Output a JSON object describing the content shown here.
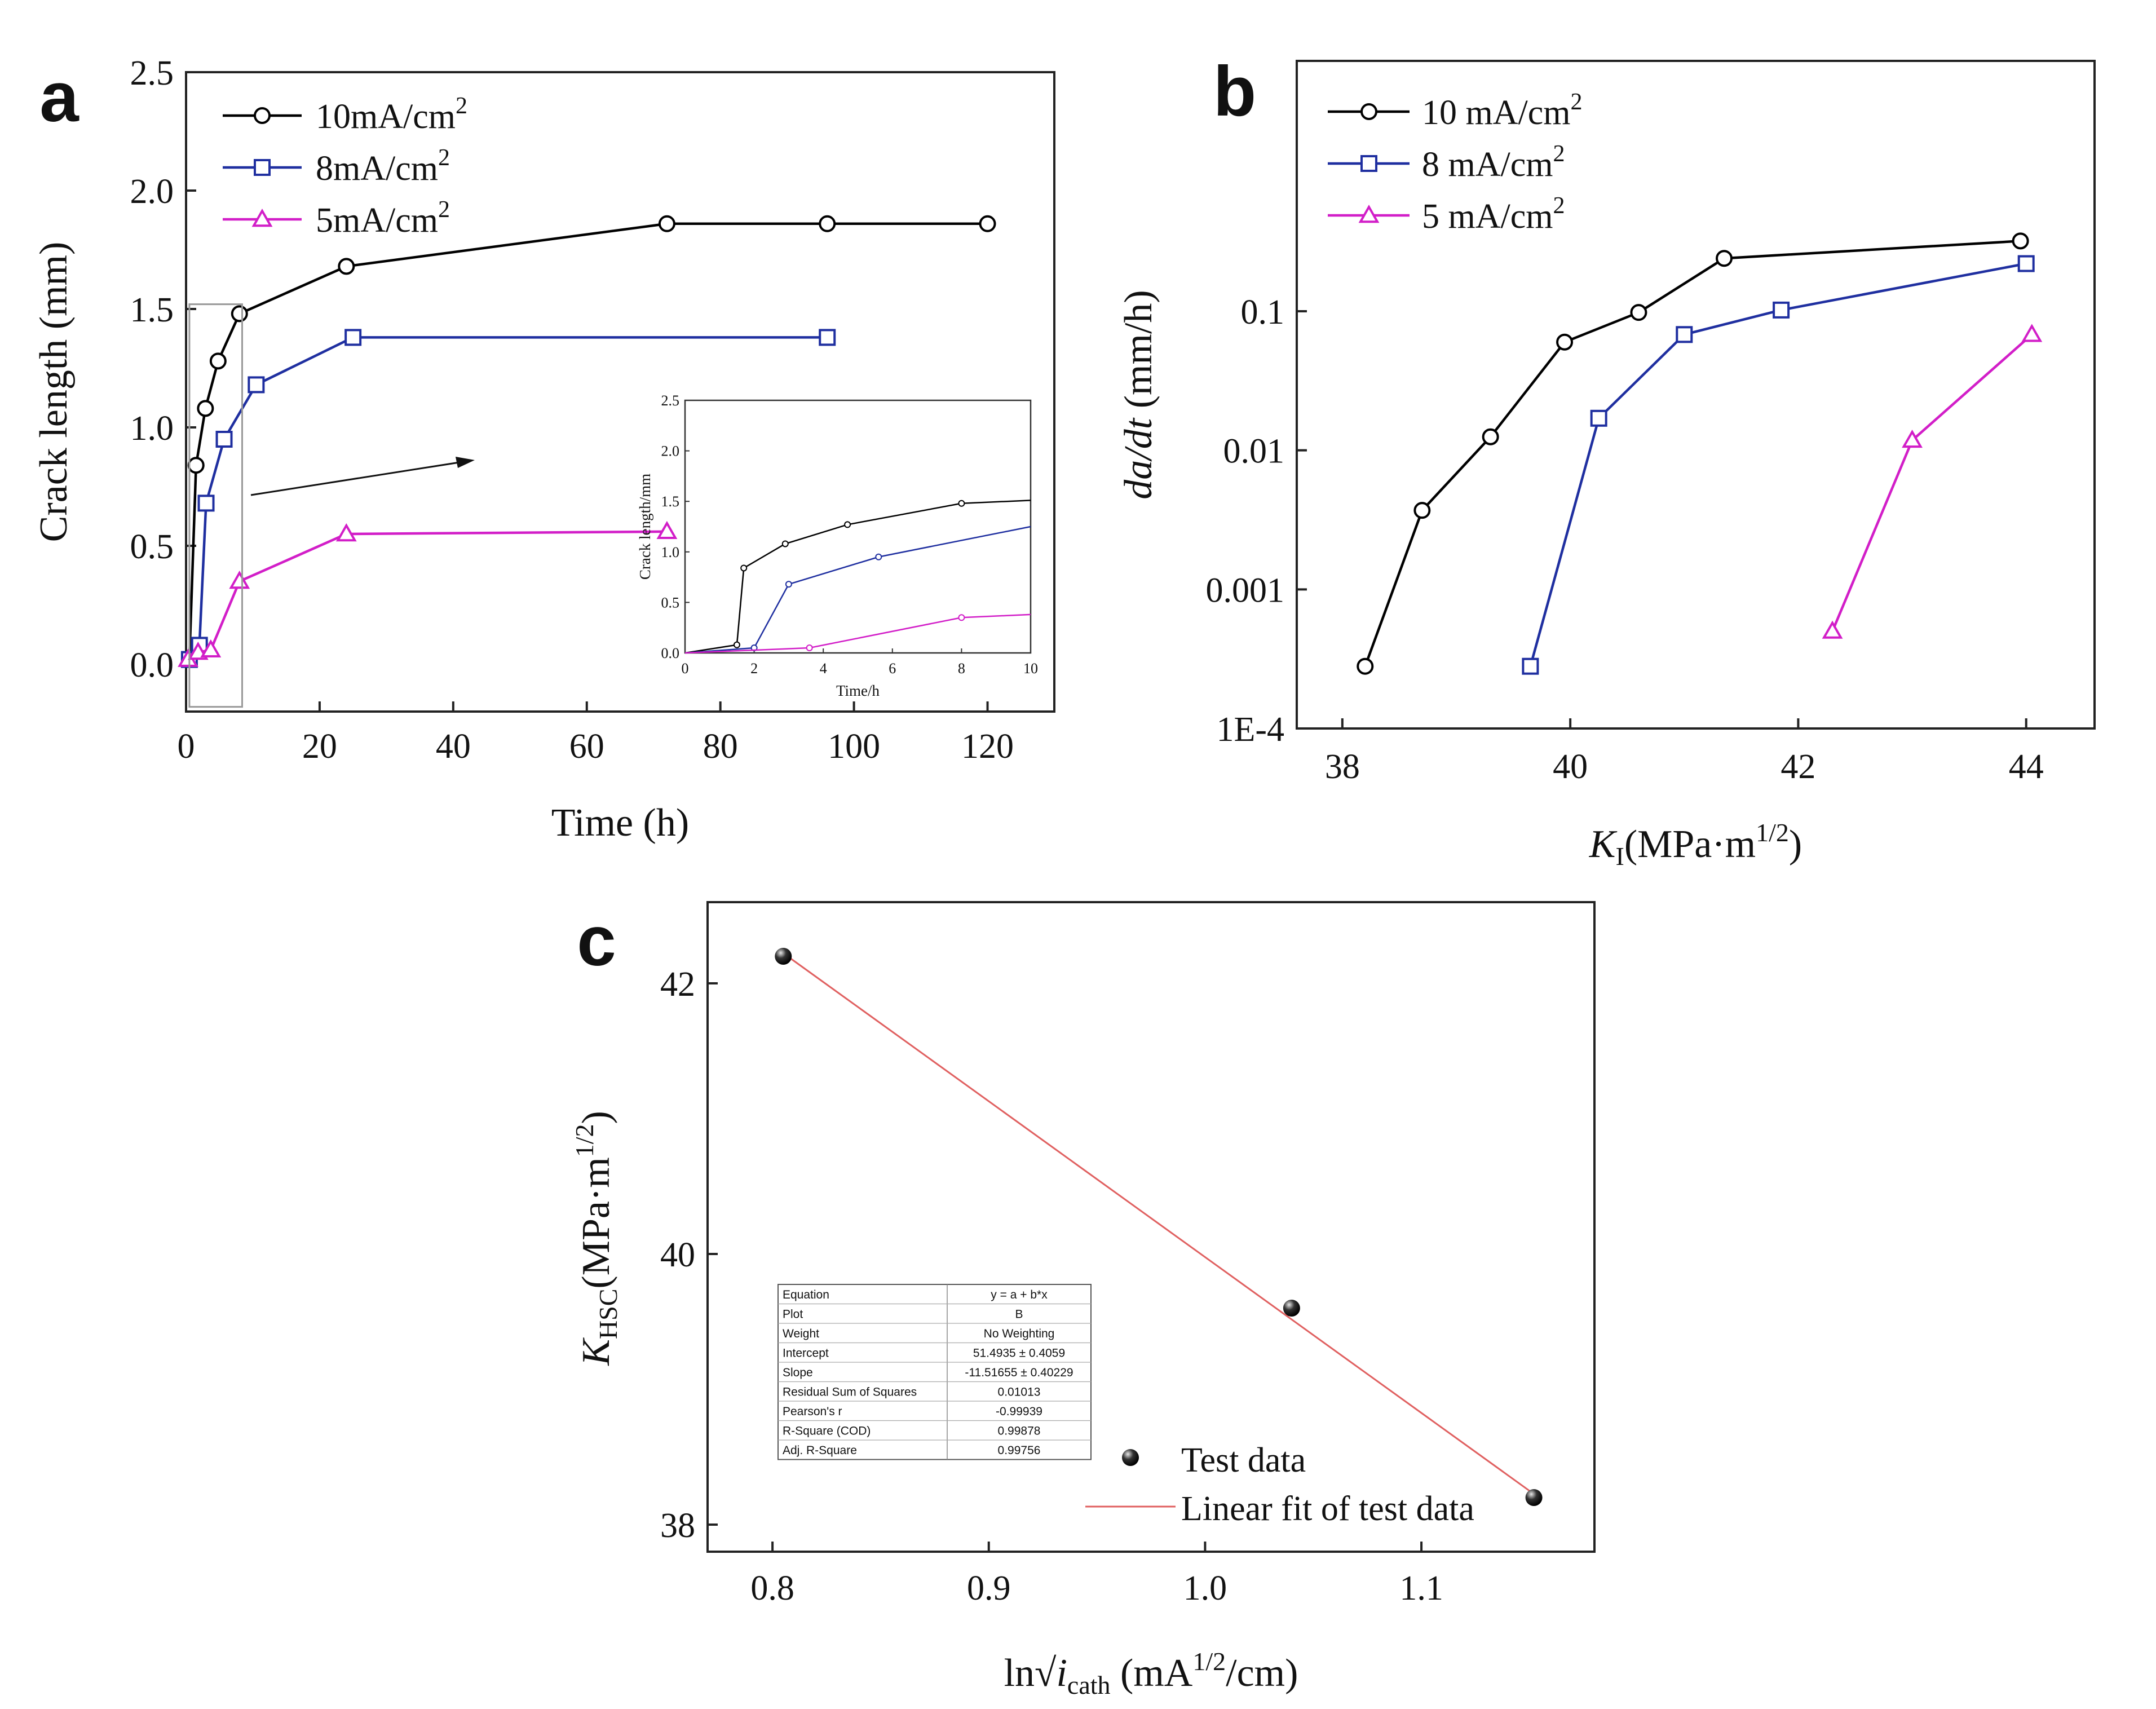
{
  "chart_data": [
    {
      "panel": "a",
      "type": "line",
      "xlabel": "Time (h)",
      "ylabel": "Crack length (mm)",
      "xlim": [
        0,
        130
      ],
      "ylim": [
        -0.2,
        2.5
      ],
      "xticks": [
        0,
        20,
        40,
        60,
        80,
        100,
        120
      ],
      "yticks": [
        0.0,
        0.5,
        1.0,
        1.5,
        2.0,
        2.5
      ],
      "legend": "top-left",
      "series": [
        {
          "name": "10mA/cm",
          "sup": "2",
          "color": "#000000",
          "marker": "circle",
          "x": [
            0.5,
            1.5,
            2.9,
            4.8,
            8,
            24,
            72,
            96,
            120
          ],
          "y": [
            0.02,
            0.84,
            1.08,
            1.28,
            1.48,
            1.68,
            1.86,
            1.86,
            1.86
          ]
        },
        {
          "name": "8mA/cm",
          "sup": "2",
          "color": "#1f2fa0",
          "marker": "square",
          "x": [
            0.5,
            2,
            3,
            5.7,
            10.5,
            25,
            96
          ],
          "y": [
            0.02,
            0.08,
            0.68,
            0.95,
            1.18,
            1.38,
            1.38
          ]
        },
        {
          "name": "5mA/cm",
          "sup": "2",
          "color": "#d21ec8",
          "marker": "triangle",
          "x": [
            0.3,
            1.8,
            3.7,
            8,
            24,
            72
          ],
          "y": [
            0.02,
            0.05,
            0.06,
            0.35,
            0.55,
            0.56
          ]
        }
      ],
      "inset": {
        "xlabel": "Time/h",
        "ylabel": "Crack length/mm",
        "xlim": [
          0,
          10
        ],
        "ylim": [
          0,
          2.5
        ],
        "xticks": [
          0,
          2,
          4,
          6,
          8,
          10
        ],
        "yticks": [
          0.0,
          0.5,
          1.0,
          1.5,
          2.0,
          2.5
        ],
        "series": [
          {
            "name": "10mA/cm2",
            "color": "#000000",
            "x": [
              0,
              1.5,
              1.7,
              2.9,
              4.7,
              8,
              10
            ],
            "y": [
              0,
              0.08,
              0.84,
              1.08,
              1.27,
              1.48,
              1.51
            ]
          },
          {
            "name": "8mA/cm2",
            "color": "#1f2fa0",
            "x": [
              0,
              2,
              3,
              5.6,
              10
            ],
            "y": [
              0,
              0.05,
              0.68,
              0.95,
              1.25
            ]
          },
          {
            "name": "5mA/cm2",
            "color": "#d21ec8",
            "x": [
              0,
              3.6,
              8,
              10
            ],
            "y": [
              0,
              0.05,
              0.35,
              0.38
            ]
          }
        ]
      }
    },
    {
      "panel": "b",
      "type": "line",
      "xlabel_main": "K",
      "xlabel_sub": "I",
      "xlabel_rest": "(MPa·m",
      "xlabel_sup": "1/2",
      "xlabel_end": ")",
      "ylabel": "da/dt",
      "ylabel_unit": " (mm/h)",
      "yscale": "log",
      "xlim": [
        37.6,
        44.6
      ],
      "ylim_log10": [
        -4,
        0.8
      ],
      "xticks": [
        38,
        40,
        42,
        44
      ],
      "ytick_labels": [
        "1E-4",
        "0.001",
        "0.01",
        "0.1"
      ],
      "ytick_values": [
        0.0001,
        0.001,
        0.01,
        0.1
      ],
      "legend": "top-left",
      "series": [
        {
          "name": "10 mA/cm",
          "sup": "2",
          "color": "#000000",
          "marker": "circle",
          "x": [
            38.2,
            38.7,
            39.3,
            39.95,
            40.6,
            41.35,
            43.95
          ],
          "y": [
            0.00028,
            0.0037,
            0.0125,
            0.06,
            0.098,
            0.24,
            0.32
          ]
        },
        {
          "name": "8 mA/cm",
          "sup": "2",
          "color": "#1f2fa0",
          "marker": "square",
          "x": [
            39.65,
            40.25,
            41.0,
            41.85,
            44.0
          ],
          "y": [
            0.00028,
            0.017,
            0.068,
            0.102,
            0.22
          ]
        },
        {
          "name": "5 mA/cm",
          "sup": "2",
          "color": "#d21ec8",
          "marker": "triangle",
          "x": [
            42.3,
            43.0,
            44.05
          ],
          "y": [
            0.0005,
            0.0118,
            0.068
          ]
        }
      ]
    },
    {
      "panel": "c",
      "type": "scatter",
      "xlabel_main": "ln√",
      "xlabel_i": "i",
      "xlabel_sub": "cath",
      "xlabel_rest": " (mA",
      "xlabel_sup": "1/2",
      "xlabel_end": "/cm)",
      "ylabel_main": "K",
      "ylabel_sub": "HSC",
      "ylabel_rest": "(MPa·m",
      "ylabel_sup": "1/2",
      "ylabel_end": ")",
      "xlim": [
        0.77,
        1.18
      ],
      "ylim": [
        37.8,
        42.6
      ],
      "xticks": [
        0.8,
        0.9,
        1.0,
        1.1
      ],
      "yticks": [
        38,
        40,
        42
      ],
      "legend": "bottom-right",
      "points": {
        "name": "Test data",
        "x": [
          0.805,
          1.04,
          1.152
        ],
        "y": [
          42.2,
          39.6,
          38.2
        ]
      },
      "fit": {
        "name": "Linear fit of test data",
        "color": "#e06060",
        "intercept": 51.4935,
        "slope": -11.51655,
        "x": [
          0.805,
          1.152
        ]
      },
      "fit_table": [
        [
          "Equation",
          "y = a + b*x"
        ],
        [
          "Plot",
          "B"
        ],
        [
          "Weight",
          "No Weighting"
        ],
        [
          "Intercept",
          "51.4935 ± 0.4059"
        ],
        [
          "Slope",
          "-11.51655 ± 0.40229"
        ],
        [
          "Residual Sum of Squares",
          "0.01013"
        ],
        [
          "Pearson's r",
          "-0.99939"
        ],
        [
          "R-Square (COD)",
          "0.99878"
        ],
        [
          "Adj. R-Square",
          "0.99756"
        ]
      ]
    }
  ]
}
